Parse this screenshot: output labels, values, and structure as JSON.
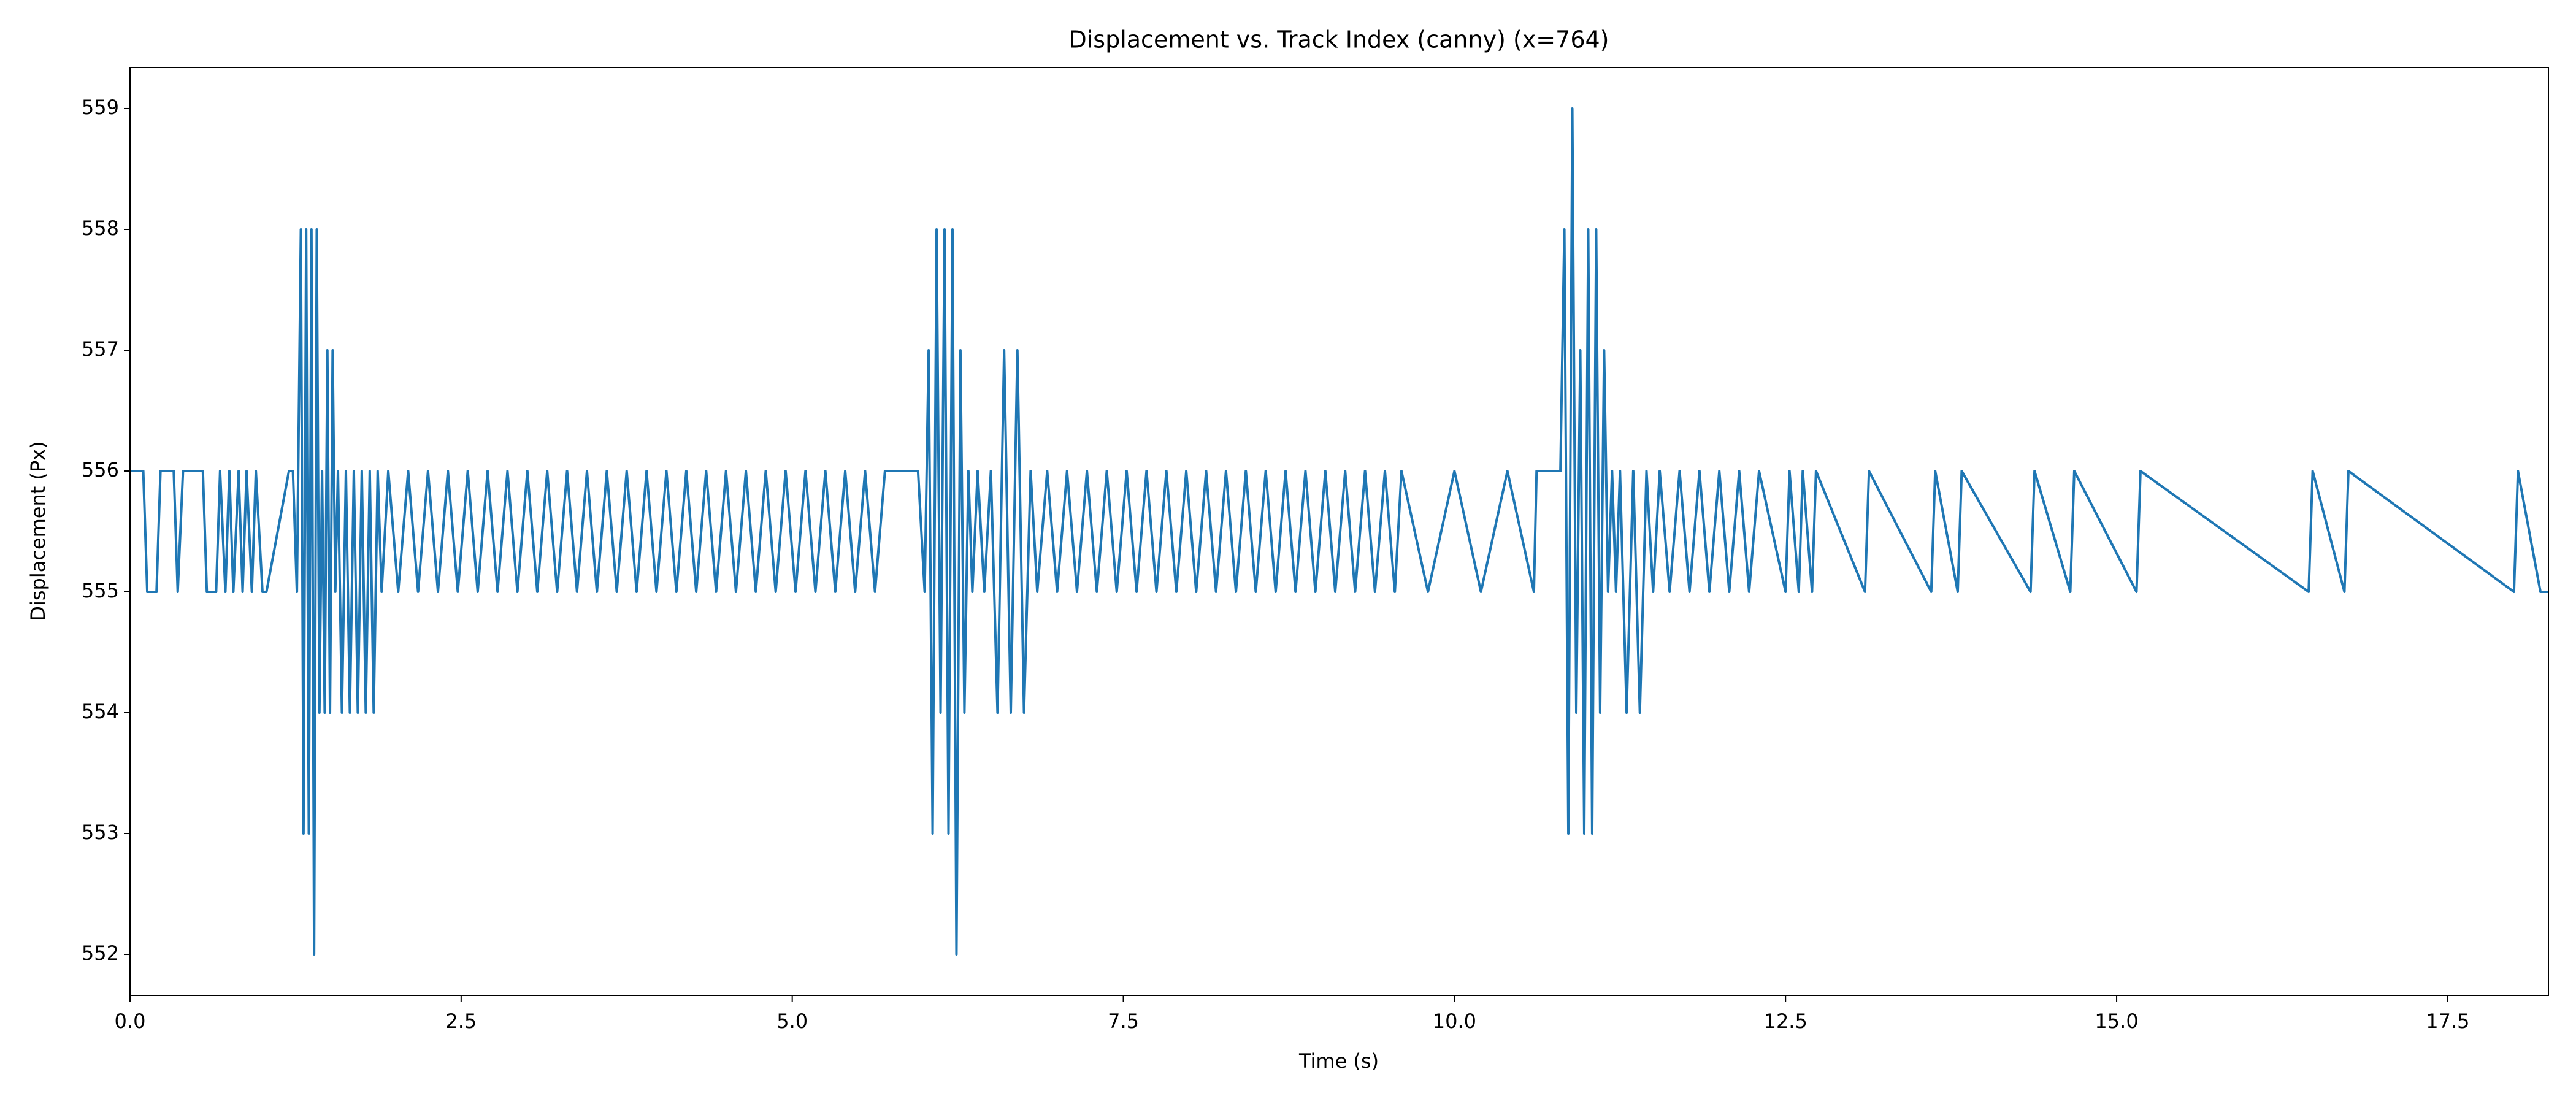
{
  "chart_data": {
    "type": "line",
    "title": "Displacement vs. Track Index (canny) (x=764)",
    "xlabel": "Time (s)",
    "ylabel": "Displacement (Px)",
    "x": [
      0,
      0.1,
      0.13,
      0.2,
      0.23,
      0.33,
      0.36,
      0.4,
      0.43,
      0.55,
      0.58,
      0.65,
      0.68,
      0.72,
      0.75,
      0.78,
      0.82,
      0.85,
      0.88,
      0.92,
      0.95,
      1.0,
      1.03,
      1.2,
      1.23,
      1.26,
      1.29,
      1.31,
      1.33,
      1.35,
      1.37,
      1.39,
      1.41,
      1.43,
      1.45,
      1.47,
      1.49,
      1.51,
      1.53,
      1.55,
      1.57,
      1.6,
      1.63,
      1.66,
      1.69,
      1.72,
      1.75,
      1.78,
      1.81,
      1.84,
      1.87,
      1.9,
      1.95,
      2.025,
      2.1,
      2.175,
      2.25,
      2.325,
      2.4,
      2.475,
      2.55,
      2.625,
      2.7,
      2.775,
      2.85,
      2.925,
      3.0,
      3.075,
      3.15,
      3.225,
      3.3,
      3.375,
      3.45,
      3.525,
      3.6,
      3.675,
      3.75,
      3.825,
      3.9,
      3.975,
      4.05,
      4.125,
      4.2,
      4.275,
      4.35,
      4.425,
      4.5,
      4.575,
      4.65,
      4.725,
      4.8,
      4.875,
      4.95,
      5.025,
      5.1,
      5.175,
      5.25,
      5.325,
      5.4,
      5.475,
      5.55,
      5.625,
      5.7,
      5.95,
      6.0,
      6.03,
      6.06,
      6.09,
      6.12,
      6.15,
      6.18,
      6.21,
      6.24,
      6.27,
      6.3,
      6.33,
      6.36,
      6.4,
      6.45,
      6.5,
      6.55,
      6.6,
      6.65,
      6.7,
      6.75,
      6.8,
      6.85,
      6.925,
      7.0,
      7.075,
      7.15,
      7.225,
      7.3,
      7.375,
      7.45,
      7.525,
      7.6,
      7.675,
      7.75,
      7.825,
      7.9,
      7.975,
      8.05,
      8.125,
      8.2,
      8.275,
      8.35,
      8.425,
      8.5,
      8.575,
      8.65,
      8.725,
      8.8,
      8.875,
      8.95,
      9.025,
      9.1,
      9.175,
      9.25,
      9.325,
      9.4,
      9.475,
      9.55,
      9.6,
      9.8,
      10.0,
      10.2,
      10.4,
      10.6,
      10.62,
      10.8,
      10.83,
      10.86,
      10.89,
      10.92,
      10.95,
      10.98,
      11.01,
      11.04,
      11.07,
      11.1,
      11.13,
      11.16,
      11.19,
      11.22,
      11.25,
      11.3,
      11.35,
      11.4,
      11.45,
      11.5,
      11.55,
      11.625,
      11.7,
      11.775,
      11.85,
      11.925,
      12.0,
      12.075,
      12.15,
      12.225,
      12.3,
      12.5,
      12.53,
      12.6,
      12.63,
      12.7,
      12.73,
      13.1,
      13.13,
      13.6,
      13.63,
      13.8,
      13.83,
      14.35,
      14.38,
      14.65,
      14.68,
      15.15,
      15.18,
      16.45,
      16.48,
      16.72,
      16.75,
      18.0,
      18.03,
      18.2,
      18.26
    ],
    "series": [
      {
        "color": "#1f77b4",
        "values": [
          556,
          556,
          555,
          555,
          556,
          556,
          555,
          556,
          556,
          556,
          555,
          555,
          556,
          555,
          556,
          555,
          556,
          555,
          556,
          555,
          556,
          555,
          555,
          556,
          556,
          555,
          558,
          553,
          558,
          553,
          558,
          552,
          558,
          554,
          556,
          554,
          557,
          554,
          557,
          555,
          556,
          554,
          556,
          554,
          556,
          554,
          556,
          554,
          556,
          554,
          556,
          555,
          556,
          555,
          556,
          555,
          556,
          555,
          556,
          555,
          556,
          555,
          556,
          555,
          556,
          555,
          556,
          555,
          556,
          555,
          556,
          555,
          556,
          555,
          556,
          555,
          556,
          555,
          556,
          555,
          556,
          555,
          556,
          555,
          556,
          555,
          556,
          555,
          556,
          555,
          556,
          555,
          556,
          555,
          556,
          555,
          556,
          555,
          556,
          555,
          556,
          555,
          556,
          556,
          555,
          557,
          553,
          558,
          554,
          558,
          553,
          558,
          552,
          557,
          554,
          556,
          555,
          556,
          555,
          556,
          554,
          557,
          554,
          557,
          554,
          556,
          555,
          556,
          555,
          556,
          555,
          556,
          555,
          556,
          555,
          556,
          555,
          556,
          555,
          556,
          555,
          556,
          555,
          556,
          555,
          556,
          555,
          556,
          555,
          556,
          555,
          556,
          555,
          556,
          555,
          556,
          555,
          556,
          555,
          556,
          555,
          556,
          555,
          556,
          555,
          556,
          555,
          556,
          555,
          556,
          556,
          558,
          553,
          559,
          554,
          557,
          553,
          558,
          553,
          558,
          554,
          557,
          555,
          556,
          555,
          556,
          554,
          556,
          554,
          556,
          555,
          556,
          555,
          556,
          555,
          556,
          555,
          556,
          555,
          556,
          555,
          556,
          555,
          556,
          555,
          556,
          555,
          556,
          555,
          556,
          555,
          556,
          555,
          556,
          555,
          556,
          555,
          556,
          555,
          556,
          555,
          556,
          555,
          556,
          555,
          556,
          555,
          555
        ]
      }
    ],
    "xlim": [
      0,
      18.26
    ],
    "ylim": [
      551.66,
      559.34
    ],
    "xticks": [
      {
        "value": 0,
        "label": "0.0"
      },
      2.5,
      {
        "value": 5,
        "label": "5.0"
      },
      7.5,
      {
        "value": 10,
        "label": "10.0"
      },
      12.5,
      {
        "value": 15,
        "label": "15.0"
      },
      17.5
    ],
    "yticks": [
      552,
      553,
      554,
      555,
      556,
      557,
      558,
      559
    ]
  }
}
